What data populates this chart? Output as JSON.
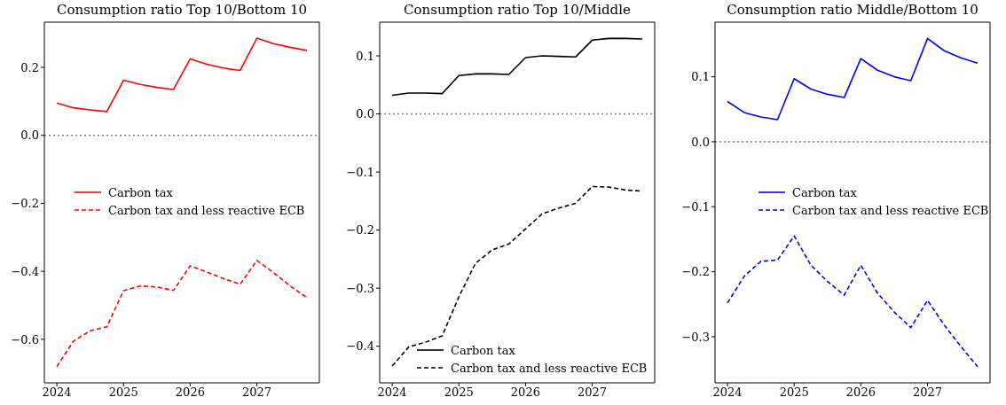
{
  "chart_data": [
    {
      "type": "line",
      "title": "Consumption ratio Top 10/Bottom 10",
      "x": [
        2024,
        2024.25,
        2024.5,
        2024.75,
        2025,
        2025.25,
        2025.5,
        2025.75,
        2026,
        2026.25,
        2026.5,
        2026.75,
        2027,
        2027.25,
        2027.5,
        2027.75
      ],
      "series": [
        {
          "name": "Carbon tax",
          "color": "#ff0000",
          "line_style": "solid",
          "values": [
            0.095,
            0.081,
            0.075,
            0.07,
            0.162,
            0.15,
            0.141,
            0.135,
            0.225,
            0.209,
            0.198,
            0.191,
            0.286,
            0.27,
            0.259,
            0.25
          ]
        },
        {
          "name": "Carbon tax and less reactive ECB",
          "color": "#ff0000",
          "line_style": "dashed",
          "values": [
            -0.68,
            -0.605,
            -0.575,
            -0.563,
            -0.457,
            -0.443,
            -0.446,
            -0.456,
            -0.384,
            -0.402,
            -0.421,
            -0.438,
            -0.368,
            -0.404,
            -0.443,
            -0.477
          ]
        }
      ],
      "xlim": [
        2023.8125,
        2027.9375
      ],
      "ylim": [
        -0.728,
        0.333
      ],
      "xticks": [
        2024,
        2025,
        2026,
        2027
      ],
      "yticks": [
        {
          "value": -0.6,
          "label": "−0.6"
        },
        {
          "value": -0.4,
          "label": "−0.4"
        },
        {
          "value": -0.2,
          "label": "−0.2"
        },
        {
          "value": 0,
          "label": "0.0"
        },
        {
          "value": 0.2,
          "label": "0.2"
        }
      ],
      "ref_lines": [
        {
          "axis": "y",
          "value": 0,
          "color": "#808080",
          "line_style": "dotted"
        }
      ],
      "legend": "center left"
    },
    {
      "type": "line",
      "title": "Consumption ratio Top 10/Middle",
      "x": [
        2024,
        2024.25,
        2024.5,
        2024.75,
        2025,
        2025.25,
        2025.5,
        2025.75,
        2026,
        2026.25,
        2026.5,
        2026.75,
        2027,
        2027.25,
        2027.5,
        2027.75
      ],
      "series": [
        {
          "name": "Carbon tax",
          "color": "#000000",
          "line_style": "solid",
          "values": [
            0.032,
            0.036,
            0.036,
            0.035,
            0.066,
            0.069,
            0.069,
            0.068,
            0.097,
            0.1,
            0.099,
            0.098,
            0.127,
            0.13,
            0.13,
            0.129
          ]
        },
        {
          "name": "Carbon tax and less reactive ECB",
          "color": "#000000",
          "line_style": "dashed",
          "values": [
            -0.434,
            -0.401,
            -0.393,
            -0.382,
            -0.315,
            -0.257,
            -0.234,
            -0.224,
            -0.198,
            -0.172,
            -0.162,
            -0.154,
            -0.125,
            -0.126,
            -0.131,
            -0.133
          ]
        }
      ],
      "xlim": [
        2023.8125,
        2027.9375
      ],
      "ylim": [
        -0.463,
        0.158
      ],
      "xticks": [
        2024,
        2025,
        2026,
        2027
      ],
      "yticks": [
        {
          "value": -0.4,
          "label": "−0.4"
        },
        {
          "value": -0.3,
          "label": "−0.3"
        },
        {
          "value": -0.2,
          "label": "−0.2"
        },
        {
          "value": -0.1,
          "label": "−0.1"
        },
        {
          "value": 0,
          "label": "0.0"
        },
        {
          "value": 0.1,
          "label": "0.1"
        }
      ],
      "ref_lines": [
        {
          "axis": "y",
          "value": 0,
          "color": "#808080",
          "line_style": "dotted"
        }
      ],
      "legend": "bottom"
    },
    {
      "type": "line",
      "title": "Consumption ratio Middle/Bottom 10",
      "x": [
        2024,
        2024.25,
        2024.5,
        2024.75,
        2025,
        2025.25,
        2025.5,
        2025.75,
        2026,
        2026.25,
        2026.5,
        2026.75,
        2027,
        2027.25,
        2027.5,
        2027.75
      ],
      "series": [
        {
          "name": "Carbon tax",
          "color": "#0000ff",
          "line_style": "solid",
          "values": [
            0.062,
            0.045,
            0.038,
            0.034,
            0.097,
            0.081,
            0.073,
            0.068,
            0.128,
            0.11,
            0.1,
            0.094,
            0.159,
            0.14,
            0.129,
            0.121
          ]
        },
        {
          "name": "Carbon tax and less reactive ECB",
          "color": "#0000ff",
          "line_style": "dashed",
          "values": [
            -0.248,
            -0.207,
            -0.184,
            -0.182,
            -0.145,
            -0.19,
            -0.215,
            -0.236,
            -0.19,
            -0.233,
            -0.262,
            -0.286,
            -0.244,
            -0.282,
            -0.315,
            -0.346
          ]
        }
      ],
      "xlim": [
        2023.8125,
        2027.9375
      ],
      "ylim": [
        -0.371,
        0.184
      ],
      "xticks": [
        2024,
        2025,
        2026,
        2027
      ],
      "yticks": [
        {
          "value": -0.3,
          "label": "−0.3"
        },
        {
          "value": -0.2,
          "label": "−0.2"
        },
        {
          "value": -0.1,
          "label": "−0.1"
        },
        {
          "value": 0,
          "label": "0.0"
        },
        {
          "value": 0.1,
          "label": "0.1"
        }
      ],
      "ref_lines": [
        {
          "axis": "y",
          "value": 0,
          "color": "#808080",
          "line_style": "dotted"
        }
      ],
      "legend": "center"
    }
  ]
}
